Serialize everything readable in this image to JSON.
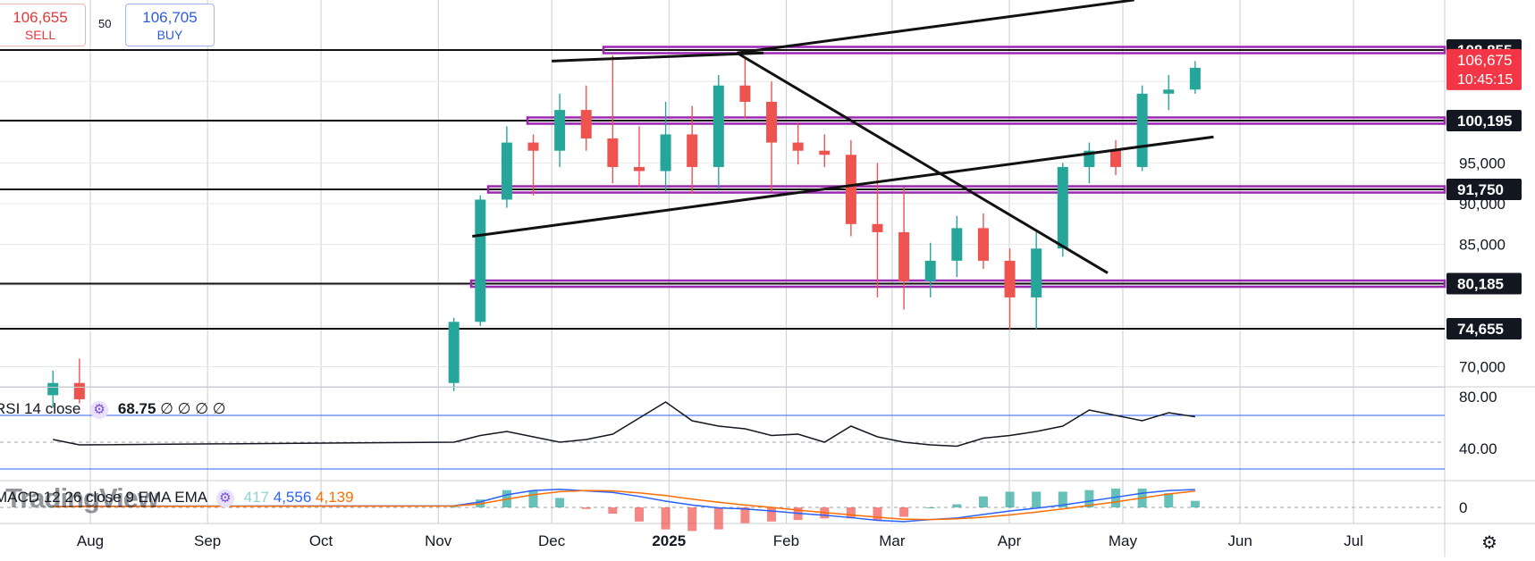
{
  "trade_panel": {
    "sell_price": "106,655",
    "sell_label": "SELL",
    "spread": "50",
    "buy_price": "106,705",
    "buy_label": "BUY"
  },
  "rsi_label": {
    "name": "RSI 14 close",
    "value": "68.75",
    "placeholders": "∅ ∅ ∅ ∅"
  },
  "macd_label": {
    "name": "MACD 12 26 close 9 EMA EMA",
    "hist": "417",
    "macd": "4,556",
    "signal": "4,139"
  },
  "watermark": "TradingView",
  "colors": {
    "up": "#26a69a",
    "down": "#ef5350",
    "level": "#9c27b0",
    "rsi_band": "#2962ff",
    "macd_line": "#2962ff",
    "signal_line": "#ff6d00",
    "price_tag": "#f23645"
  },
  "icons": {
    "settings": "gear-icon",
    "rsi_settings": "gear-icon",
    "macd_settings": "gear-icon"
  },
  "chart_data": [
    {
      "type": "candlestick",
      "x": [
        "Jul 20",
        "Jul 27",
        "Nov 3",
        "Nov 10",
        "Nov 17",
        "Nov 24",
        "Dec 1",
        "Dec 8",
        "Dec 15",
        "Dec 22",
        "Dec 29",
        "Jan 5",
        "Jan 12",
        "Jan 19",
        "Jan 26",
        "Feb 2",
        "Feb 9",
        "Feb 16",
        "Feb 23",
        "Mar 2",
        "Mar 9",
        "Mar 16",
        "Mar 23",
        "Mar 30",
        "Apr 6",
        "Apr 13",
        "Apr 20",
        "Apr 27",
        "May 4",
        "May 11",
        "May 18"
      ],
      "series": [
        {
          "ohlc": [
            [
              66500,
              69500,
              65000,
              68000
            ],
            [
              68000,
              71000,
              65500,
              66000
            ],
            [
              68000,
              76000,
              67000,
              75500
            ],
            [
              75500,
              91000,
              75000,
              90500
            ],
            [
              90500,
              99500,
              89500,
              97500
            ],
            [
              97500,
              98500,
              91000,
              96500
            ],
            [
              96500,
              103500,
              94500,
              101500
            ],
            [
              101500,
              104500,
              96500,
              98000
            ],
            [
              98000,
              108200,
              92500,
              94500
            ],
            [
              94500,
              99500,
              92000,
              94000
            ],
            [
              94000,
              102500,
              91500,
              98500
            ],
            [
              98500,
              102000,
              91200,
              94500
            ],
            [
              94500,
              105800,
              91800,
              104500
            ],
            [
              104500,
              107800,
              100500,
              102500
            ],
            [
              102500,
              105000,
              91500,
              97500
            ],
            [
              97500,
              100000,
              94800,
              96500
            ],
            [
              96500,
              98500,
              94500,
              96000
            ],
            [
              96000,
              97800,
              86000,
              87500
            ],
            [
              87500,
              95000,
              78500,
              86500
            ],
            [
              86500,
              92000,
              77000,
              80500
            ],
            [
              80500,
              85200,
              78500,
              83000
            ],
            [
              83000,
              88500,
              81000,
              87000
            ],
            [
              87000,
              88800,
              82000,
              83000
            ],
            [
              83000,
              84500,
              74500,
              78500
            ],
            [
              78500,
              86500,
              74600,
              84500
            ],
            [
              84500,
              95000,
              83500,
              94500
            ],
            [
              94500,
              97500,
              92500,
              96500
            ],
            [
              96500,
              97800,
              93500,
              94500
            ],
            [
              94500,
              104500,
              94000,
              103500
            ],
            [
              103500,
              105800,
              101500,
              104000
            ],
            [
              104000,
              107500,
              103500,
              106675
            ]
          ]
        }
      ],
      "y_ticks": [
        70000,
        75000,
        80000,
        85000,
        90000,
        95000,
        100000,
        105000
      ],
      "y_tick_labels": [
        "70,000",
        "",
        "",
        "85,000",
        "90,000",
        "95,000",
        "",
        ""
      ],
      "price_levels": [
        108855,
        100195,
        91750,
        80185,
        74655
      ],
      "price_level_labels": [
        "108,855",
        "100,195",
        "91,750",
        "80,185",
        "74,655"
      ],
      "last_price": "106,675",
      "countdown": "10:45:15",
      "x_tick_labels": [
        "Aug",
        "Sep",
        "Oct",
        "Nov",
        "Dec",
        "2025",
        "Feb",
        "Mar",
        "Apr",
        "May",
        "Jun",
        "Jul"
      ],
      "trendlines": [
        {
          "from": [
            "Dec 1",
            107500
          ],
          "to": [
            "Jan 26",
            108500
          ]
        },
        {
          "from": [
            "Jan 19",
            108500
          ],
          "to": [
            "May 4",
            115000
          ]
        },
        {
          "from": [
            "Jan 19",
            108500
          ],
          "to": [
            "Apr 27",
            81500
          ]
        },
        {
          "from": [
            "Nov 10",
            86000
          ],
          "to": [
            "May 25",
            98200
          ]
        }
      ]
    },
    {
      "type": "line",
      "title": "RSI 14 close",
      "y_ticks": [
        40,
        80
      ],
      "y_tick_labels": [
        "40.00",
        "80.00"
      ],
      "bands": [
        70,
        50,
        30
      ],
      "series": [
        {
          "name": "RSI",
          "values": [
            52,
            48,
            50,
            55,
            58,
            54,
            50,
            52,
            56,
            68,
            80,
            66,
            62,
            60,
            55,
            56,
            50,
            62,
            54,
            50,
            48,
            47,
            53,
            55,
            58,
            62,
            74,
            70,
            66,
            72,
            69
          ]
        }
      ]
    },
    {
      "type": "bar",
      "title": "MACD 12 26 close 9 EMA EMA",
      "y_ticks": [
        0
      ],
      "y_tick_labels": [
        "0"
      ],
      "series": [
        {
          "name": "MACD",
          "values": [
            200,
            300,
            400,
            1400,
            3200,
            4300,
            4600,
            4200,
            3800,
            2800,
            1600,
            600,
            -100,
            -400,
            -900,
            -1500,
            -2000,
            -2600,
            -3300,
            -3600,
            -3100,
            -2700,
            -1800,
            -900,
            -200,
            600,
            1600,
            2600,
            3600,
            4300,
            4556
          ]
        },
        {
          "name": "Signal",
          "values": [
            150,
            220,
            350,
            900,
            2100,
            3200,
            4000,
            4300,
            4200,
            3700,
            3000,
            2100,
            1300,
            600,
            0,
            -700,
            -1300,
            -1900,
            -2500,
            -3000,
            -3100,
            -2900,
            -2500,
            -1900,
            -1200,
            -400,
            500,
            1400,
            2400,
            3400,
            4139
          ]
        }
      ]
    }
  ]
}
